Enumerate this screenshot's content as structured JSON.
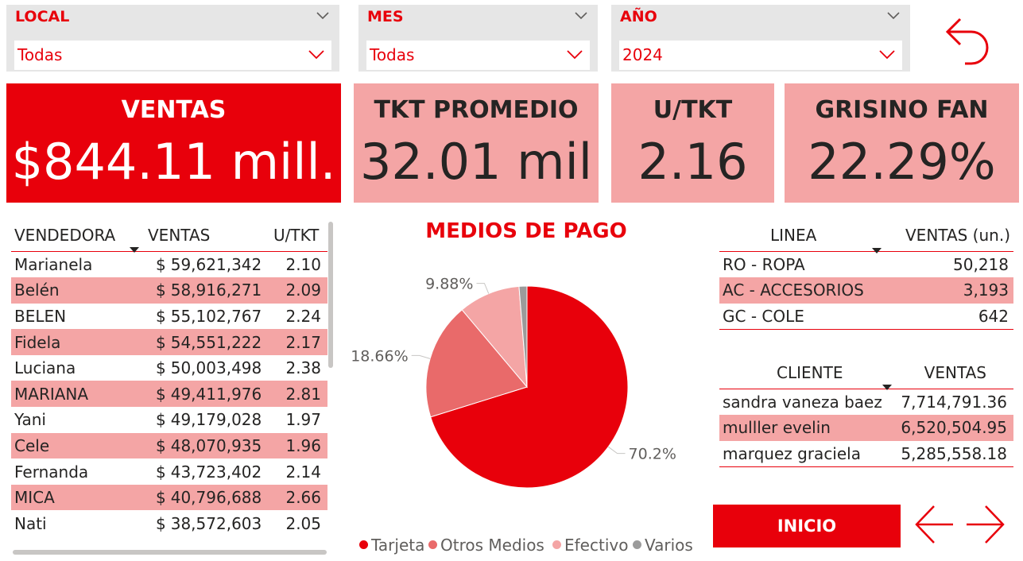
{
  "filters": {
    "local": {
      "label": "LOCAL",
      "value": "Todas"
    },
    "mes": {
      "label": "MES",
      "value": "Todas"
    },
    "anio": {
      "label": "AÑO",
      "value": "2024"
    }
  },
  "kpis": {
    "ventas": {
      "title": "VENTAS",
      "value": "$844.11 mill."
    },
    "tkt_promedio": {
      "title": "TKT PROMEDIO",
      "value": "32.01 mil"
    },
    "u_tkt": {
      "title": "U/TKT",
      "value": "2.16"
    },
    "grisino_fan": {
      "title": "GRISINO FAN",
      "value": "22.29%"
    }
  },
  "sellers_table": {
    "headers": {
      "name": "VENDEDORA",
      "sales": "VENTAS",
      "utkt": "U/TKT"
    },
    "rows": [
      {
        "name": "Marianela",
        "cur": "$",
        "sales": "59,621,342",
        "utkt": "2.10"
      },
      {
        "name": "Belén",
        "cur": "$",
        "sales": "58,916,271",
        "utkt": "2.09"
      },
      {
        "name": "BELEN",
        "cur": "$",
        "sales": "55,102,767",
        "utkt": "2.24"
      },
      {
        "name": "Fidela",
        "cur": "$",
        "sales": "54,551,222",
        "utkt": "2.17"
      },
      {
        "name": "Luciana",
        "cur": "$",
        "sales": "50,003,498",
        "utkt": "2.38"
      },
      {
        "name": "MARIANA",
        "cur": "$",
        "sales": "49,411,976",
        "utkt": "2.81"
      },
      {
        "name": "Yani",
        "cur": "$",
        "sales": "49,179,028",
        "utkt": "1.97"
      },
      {
        "name": "Cele",
        "cur": "$",
        "sales": "48,070,935",
        "utkt": "1.96"
      },
      {
        "name": "Fernanda",
        "cur": "$",
        "sales": "43,723,402",
        "utkt": "2.14"
      },
      {
        "name": "MICA",
        "cur": "$",
        "sales": "40,796,688",
        "utkt": "2.66"
      },
      {
        "name": "Nati",
        "cur": "$",
        "sales": "38,572,603",
        "utkt": "2.05"
      }
    ]
  },
  "chart_data": {
    "type": "pie",
    "title": "MEDIOS DE PAGO",
    "categories": [
      "Tarjeta",
      "Otros Medios",
      "Efectivo",
      "Varios"
    ],
    "values": [
      70.2,
      18.66,
      9.88,
      1.26
    ],
    "data_labels": [
      "70.2%",
      "18.66%",
      "9.88%",
      ""
    ],
    "colors": [
      "#e8000b",
      "#e96a6a",
      "#f4a5a5",
      "#9b9b9b"
    ],
    "legend_position": "bottom"
  },
  "linea_table": {
    "headers": {
      "linea": "LINEA",
      "ventas": "VENTAS (un.)"
    },
    "rows": [
      {
        "linea": "RO - ROPA",
        "ventas": "50,218"
      },
      {
        "linea": "AC - ACCESORIOS",
        "ventas": "3,193"
      },
      {
        "linea": "GC - COLE",
        "ventas": "642"
      }
    ]
  },
  "cliente_table": {
    "headers": {
      "cliente": "CLIENTE",
      "ventas": "VENTAS"
    },
    "rows": [
      {
        "cliente": "sandra vaneza baez",
        "ventas": "7,714,791.36"
      },
      {
        "cliente": "mulller evelin",
        "ventas": "6,520,504.95"
      },
      {
        "cliente": "marquez graciela",
        "ventas": "5,285,558.18"
      }
    ]
  },
  "buttons": {
    "inicio": "INICIO"
  },
  "icons": {
    "back": "back-arrow-icon",
    "prev": "arrow-left-icon",
    "next": "arrow-right-icon"
  },
  "colors": {
    "accent": "#e8000b",
    "highlight": "#f4a5a5",
    "text": "#252423"
  }
}
